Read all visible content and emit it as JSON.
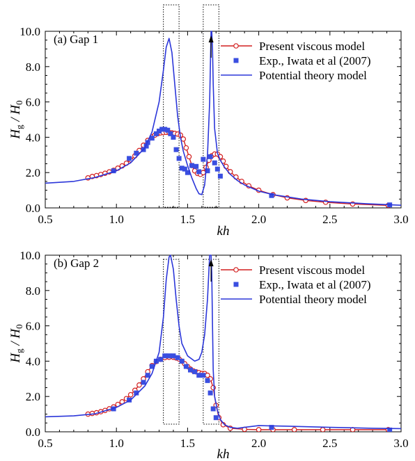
{
  "figure": {
    "xlabel_tick_sub": ""
  },
  "colors": {
    "viscous": "#d21f1f",
    "experiment": "#3a4ee0",
    "potential": "#2b36d9",
    "box": "#000000"
  },
  "legend": {
    "viscous": "Present viscous model",
    "experiment": "Exp., Iwata et al (2007)",
    "potential": "Potential theory model"
  },
  "chart_data": [
    {
      "type": "line",
      "panel_label": "(a) Gap 1",
      "xlabel": "kh",
      "ylabel_main": "H",
      "ylabel_sub": "g",
      "ylabel_rest": " / H",
      "ylabel_sub2": "0",
      "xlim": [
        0.5,
        3.0
      ],
      "ylim": [
        0.0,
        10.0
      ],
      "xticks": [
        "0.5",
        "1.0",
        "1.5",
        "2.0",
        "2.5",
        "3.0"
      ],
      "yticks": [
        "0.0",
        "2.0",
        "4.0",
        "6.0",
        "8.0",
        "10.0"
      ],
      "legend_position": "top-right",
      "dotted_boxes": [
        [
          1.33,
          1.44
        ],
        [
          1.61,
          1.72
        ]
      ],
      "series": [
        {
          "name": "Present viscous model",
          "style": "line-circle",
          "x": [
            0.8,
            0.83,
            0.86,
            0.89,
            0.92,
            0.95,
            0.98,
            1.01,
            1.04,
            1.07,
            1.1,
            1.13,
            1.16,
            1.19,
            1.22,
            1.25,
            1.27,
            1.29,
            1.31,
            1.33,
            1.35,
            1.37,
            1.39,
            1.41,
            1.43,
            1.45,
            1.47,
            1.49,
            1.51,
            1.53,
            1.55,
            1.57,
            1.59,
            1.61,
            1.63,
            1.65,
            1.67,
            1.69,
            1.71,
            1.73,
            1.75,
            1.77,
            1.8,
            1.84,
            1.88,
            1.93,
            2.0,
            2.1,
            2.2,
            2.33,
            2.47,
            2.66,
            2.91
          ],
          "y": [
            1.7,
            1.78,
            1.83,
            1.89,
            1.96,
            2.04,
            2.13,
            2.25,
            2.38,
            2.53,
            2.72,
            2.95,
            3.25,
            3.55,
            3.82,
            4.02,
            4.12,
            4.2,
            4.25,
            4.27,
            4.28,
            4.27,
            4.25,
            4.22,
            4.18,
            4.12,
            3.9,
            3.4,
            2.9,
            2.4,
            2.1,
            1.95,
            1.9,
            2.0,
            2.3,
            2.7,
            2.95,
            3.05,
            3.05,
            2.9,
            2.65,
            2.35,
            2.05,
            1.75,
            1.5,
            1.25,
            1.0,
            0.75,
            0.57,
            0.42,
            0.32,
            0.22,
            0.14
          ]
        },
        {
          "name": "Exp., Iwata et al (2007)",
          "style": "square",
          "x": [
            0.98,
            1.09,
            1.14,
            1.19,
            1.21,
            1.22,
            1.25,
            1.28,
            1.3,
            1.32,
            1.34,
            1.36,
            1.38,
            1.4,
            1.42,
            1.44,
            1.46,
            1.48,
            1.5,
            1.53,
            1.56,
            1.58,
            1.61,
            1.64,
            1.66,
            1.69,
            1.71,
            1.73,
            2.09,
            2.92
          ],
          "y": [
            2.1,
            2.8,
            3.1,
            3.3,
            3.5,
            3.7,
            3.95,
            4.2,
            4.35,
            4.45,
            4.45,
            4.4,
            4.2,
            4.0,
            3.3,
            2.8,
            2.25,
            2.2,
            2.0,
            2.4,
            2.35,
            2.05,
            2.75,
            2.1,
            2.9,
            2.55,
            2.2,
            1.8,
            0.7,
            0.17
          ]
        },
        {
          "name": "Potential theory model",
          "style": "line",
          "x": [
            0.5,
            0.7,
            0.85,
            1.0,
            1.1,
            1.2,
            1.25,
            1.3,
            1.33,
            1.35,
            1.37,
            1.39,
            1.41,
            1.43,
            1.45,
            1.47,
            1.5,
            1.53,
            1.56,
            1.58,
            1.6,
            1.62,
            1.64,
            1.655,
            1.66,
            1.665,
            1.67,
            1.675,
            1.68,
            1.69,
            1.71,
            1.73,
            1.76,
            1.8,
            1.85,
            1.9,
            2.0,
            2.1,
            2.3,
            2.5,
            2.75,
            3.0
          ],
          "y": [
            1.4,
            1.5,
            1.72,
            2.1,
            2.55,
            3.4,
            4.3,
            6.0,
            7.8,
            9.1,
            9.6,
            8.8,
            7.0,
            5.2,
            4.0,
            3.2,
            2.4,
            1.7,
            1.1,
            0.8,
            0.75,
            1.3,
            3.0,
            6.0,
            8.0,
            10.0,
            10.0,
            9.0,
            7.0,
            4.5,
            3.1,
            2.7,
            2.3,
            1.9,
            1.55,
            1.3,
            0.95,
            0.75,
            0.5,
            0.35,
            0.24,
            0.15
          ]
        }
      ]
    },
    {
      "type": "line",
      "panel_label": "(b) Gap 2",
      "xlabel": "kh",
      "ylabel_main": "H",
      "ylabel_sub": "g",
      "ylabel_rest": " / H",
      "ylabel_sub2": "0",
      "xlim": [
        0.5,
        3.0
      ],
      "ylim": [
        0.0,
        10.0
      ],
      "xticks": [
        "0.5",
        "1.0",
        "1.5",
        "2.0",
        "2.5",
        "3.0"
      ],
      "yticks": [
        "0.0",
        "2.0",
        "4.0",
        "6.0",
        "8.0",
        "10.0"
      ],
      "legend_position": "top-right",
      "dotted_boxes": [
        [
          1.33,
          1.44
        ],
        [
          1.61,
          1.72
        ]
      ],
      "series": [
        {
          "name": "Present viscous model",
          "style": "line-circle",
          "x": [
            0.8,
            0.83,
            0.86,
            0.89,
            0.92,
            0.95,
            0.98,
            1.01,
            1.04,
            1.07,
            1.1,
            1.13,
            1.16,
            1.19,
            1.22,
            1.25,
            1.28,
            1.31,
            1.34,
            1.37,
            1.4,
            1.42,
            1.44,
            1.46,
            1.48,
            1.5,
            1.52,
            1.54,
            1.56,
            1.58,
            1.6,
            1.62,
            1.64,
            1.66,
            1.68,
            1.7,
            1.72,
            1.75,
            1.8,
            1.9,
            2.0,
            2.1,
            2.25,
            2.45,
            2.66,
            2.91
          ],
          "y": [
            1.0,
            1.04,
            1.08,
            1.14,
            1.21,
            1.3,
            1.41,
            1.55,
            1.7,
            1.88,
            2.1,
            2.35,
            2.65,
            3.0,
            3.4,
            3.75,
            3.98,
            4.1,
            4.2,
            4.22,
            4.22,
            4.18,
            4.12,
            4.0,
            3.85,
            3.7,
            3.55,
            3.45,
            3.4,
            3.35,
            3.3,
            3.3,
            3.2,
            3.0,
            2.5,
            1.5,
            0.8,
            0.4,
            0.2,
            0.14,
            0.12,
            0.12,
            0.12,
            0.12,
            0.12,
            0.12
          ]
        },
        {
          "name": "Exp., Iwata et al (2007)",
          "style": "square",
          "x": [
            0.98,
            1.09,
            1.14,
            1.19,
            1.22,
            1.25,
            1.28,
            1.31,
            1.34,
            1.37,
            1.4,
            1.43,
            1.46,
            1.49,
            1.52,
            1.55,
            1.58,
            1.61,
            1.64,
            1.66,
            1.68,
            1.7,
            2.09,
            2.92
          ],
          "y": [
            1.3,
            1.8,
            2.2,
            2.8,
            3.2,
            3.7,
            4.0,
            4.1,
            4.3,
            4.3,
            4.3,
            4.2,
            4.0,
            3.7,
            3.5,
            3.4,
            3.2,
            3.2,
            2.9,
            2.2,
            1.3,
            0.8,
            0.25,
            0.1
          ]
        },
        {
          "name": "Potential theory model",
          "style": "line",
          "x": [
            0.5,
            0.7,
            0.85,
            1.0,
            1.1,
            1.2,
            1.25,
            1.3,
            1.33,
            1.35,
            1.37,
            1.38,
            1.4,
            1.42,
            1.44,
            1.46,
            1.5,
            1.55,
            1.58,
            1.6,
            1.62,
            1.64,
            1.655,
            1.66,
            1.665,
            1.67,
            1.675,
            1.68,
            1.69,
            1.71,
            1.73,
            1.76,
            1.8,
            1.85,
            1.9,
            2.0,
            2.2,
            2.5,
            2.8,
            3.0
          ],
          "y": [
            0.85,
            0.9,
            1.02,
            1.38,
            1.8,
            2.6,
            3.3,
            4.5,
            6.5,
            8.6,
            9.9,
            10.0,
            9.2,
            7.5,
            6.0,
            5.0,
            4.3,
            4.0,
            4.1,
            4.5,
            5.5,
            7.5,
            10.0,
            10.0,
            10.0,
            9.0,
            6.0,
            3.5,
            2.0,
            1.2,
            0.7,
            0.4,
            0.25,
            0.2,
            0.25,
            0.35,
            0.32,
            0.25,
            0.2,
            0.18
          ]
        }
      ]
    }
  ]
}
